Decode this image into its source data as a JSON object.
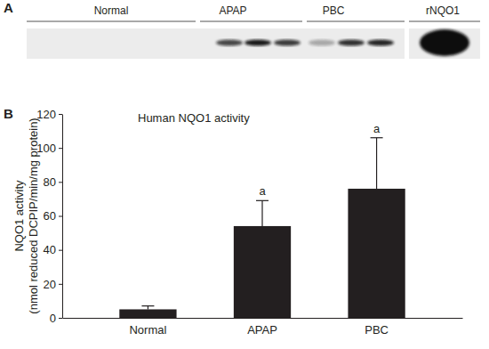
{
  "chart_data": {
    "type": "bar",
    "title": "Human NQO1 activity",
    "categories": [
      "Normal",
      "APAP",
      "PBC"
    ],
    "values": [
      5,
      54,
      76
    ],
    "errors": [
      2,
      15,
      30
    ],
    "significance": [
      null,
      "a",
      "a"
    ],
    "color": "#231f20",
    "ylabel": [
      "NQO1 activity",
      "(nmol reduced DCPIP/min/mg protein)"
    ],
    "ylim": [
      0,
      120
    ],
    "yticks": [
      0,
      20,
      40,
      60,
      80,
      100,
      120
    ],
    "annotations": [
      "A",
      "B",
      "Normal",
      "APAP",
      "PBC",
      "rNQO1"
    ]
  }
}
